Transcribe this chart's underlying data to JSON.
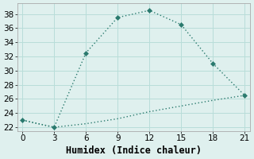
{
  "line1_x": [
    0,
    3,
    6,
    9,
    12,
    15,
    18,
    21
  ],
  "line1_y": [
    23,
    22,
    32.5,
    37.5,
    38.5,
    36.5,
    31,
    26.5
  ],
  "line2_x": [
    0,
    3,
    6,
    9,
    12,
    15,
    18,
    21
  ],
  "line2_y": [
    23,
    22,
    22.5,
    23.2,
    24.2,
    25.0,
    25.8,
    26.5
  ],
  "color": "#2a7a6e",
  "bg_color": "#dff0ee",
  "grid_color": "#b8ddd9",
  "xlabel": "Humidex (Indice chaleur)",
  "xlim": [
    -0.5,
    21.5
  ],
  "ylim": [
    21.5,
    39.5
  ],
  "xticks": [
    0,
    3,
    6,
    9,
    12,
    15,
    18,
    21
  ],
  "yticks": [
    22,
    24,
    26,
    28,
    30,
    32,
    34,
    36,
    38
  ],
  "xlabel_fontsize": 8.5,
  "tick_fontsize": 7.5
}
